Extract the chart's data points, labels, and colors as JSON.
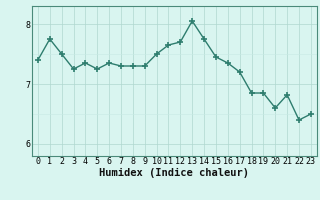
{
  "x": [
    0,
    1,
    2,
    3,
    4,
    5,
    6,
    7,
    8,
    9,
    10,
    11,
    12,
    13,
    14,
    15,
    16,
    17,
    18,
    19,
    20,
    21,
    22,
    23
  ],
  "y": [
    7.4,
    7.75,
    7.5,
    7.25,
    7.35,
    7.25,
    7.35,
    7.3,
    7.3,
    7.3,
    7.5,
    7.65,
    7.7,
    8.05,
    7.75,
    7.45,
    7.35,
    7.2,
    6.85,
    6.85,
    6.6,
    6.82,
    6.4,
    6.5
  ],
  "line_color": "#2e7d6e",
  "marker_color": "#2e7d6e",
  "bg_color": "#d9f5f0",
  "grid_color_major": "#b0d8d0",
  "grid_color_minor": "#c8eae4",
  "xlabel": "Humidex (Indice chaleur)",
  "ylim": [
    5.8,
    8.3
  ],
  "yticks": [
    6,
    7,
    8
  ],
  "xticks": [
    0,
    1,
    2,
    3,
    4,
    5,
    6,
    7,
    8,
    9,
    10,
    11,
    12,
    13,
    14,
    15,
    16,
    17,
    18,
    19,
    20,
    21,
    22,
    23
  ],
  "xlabel_fontsize": 7.5,
  "tick_fontsize": 6.0
}
